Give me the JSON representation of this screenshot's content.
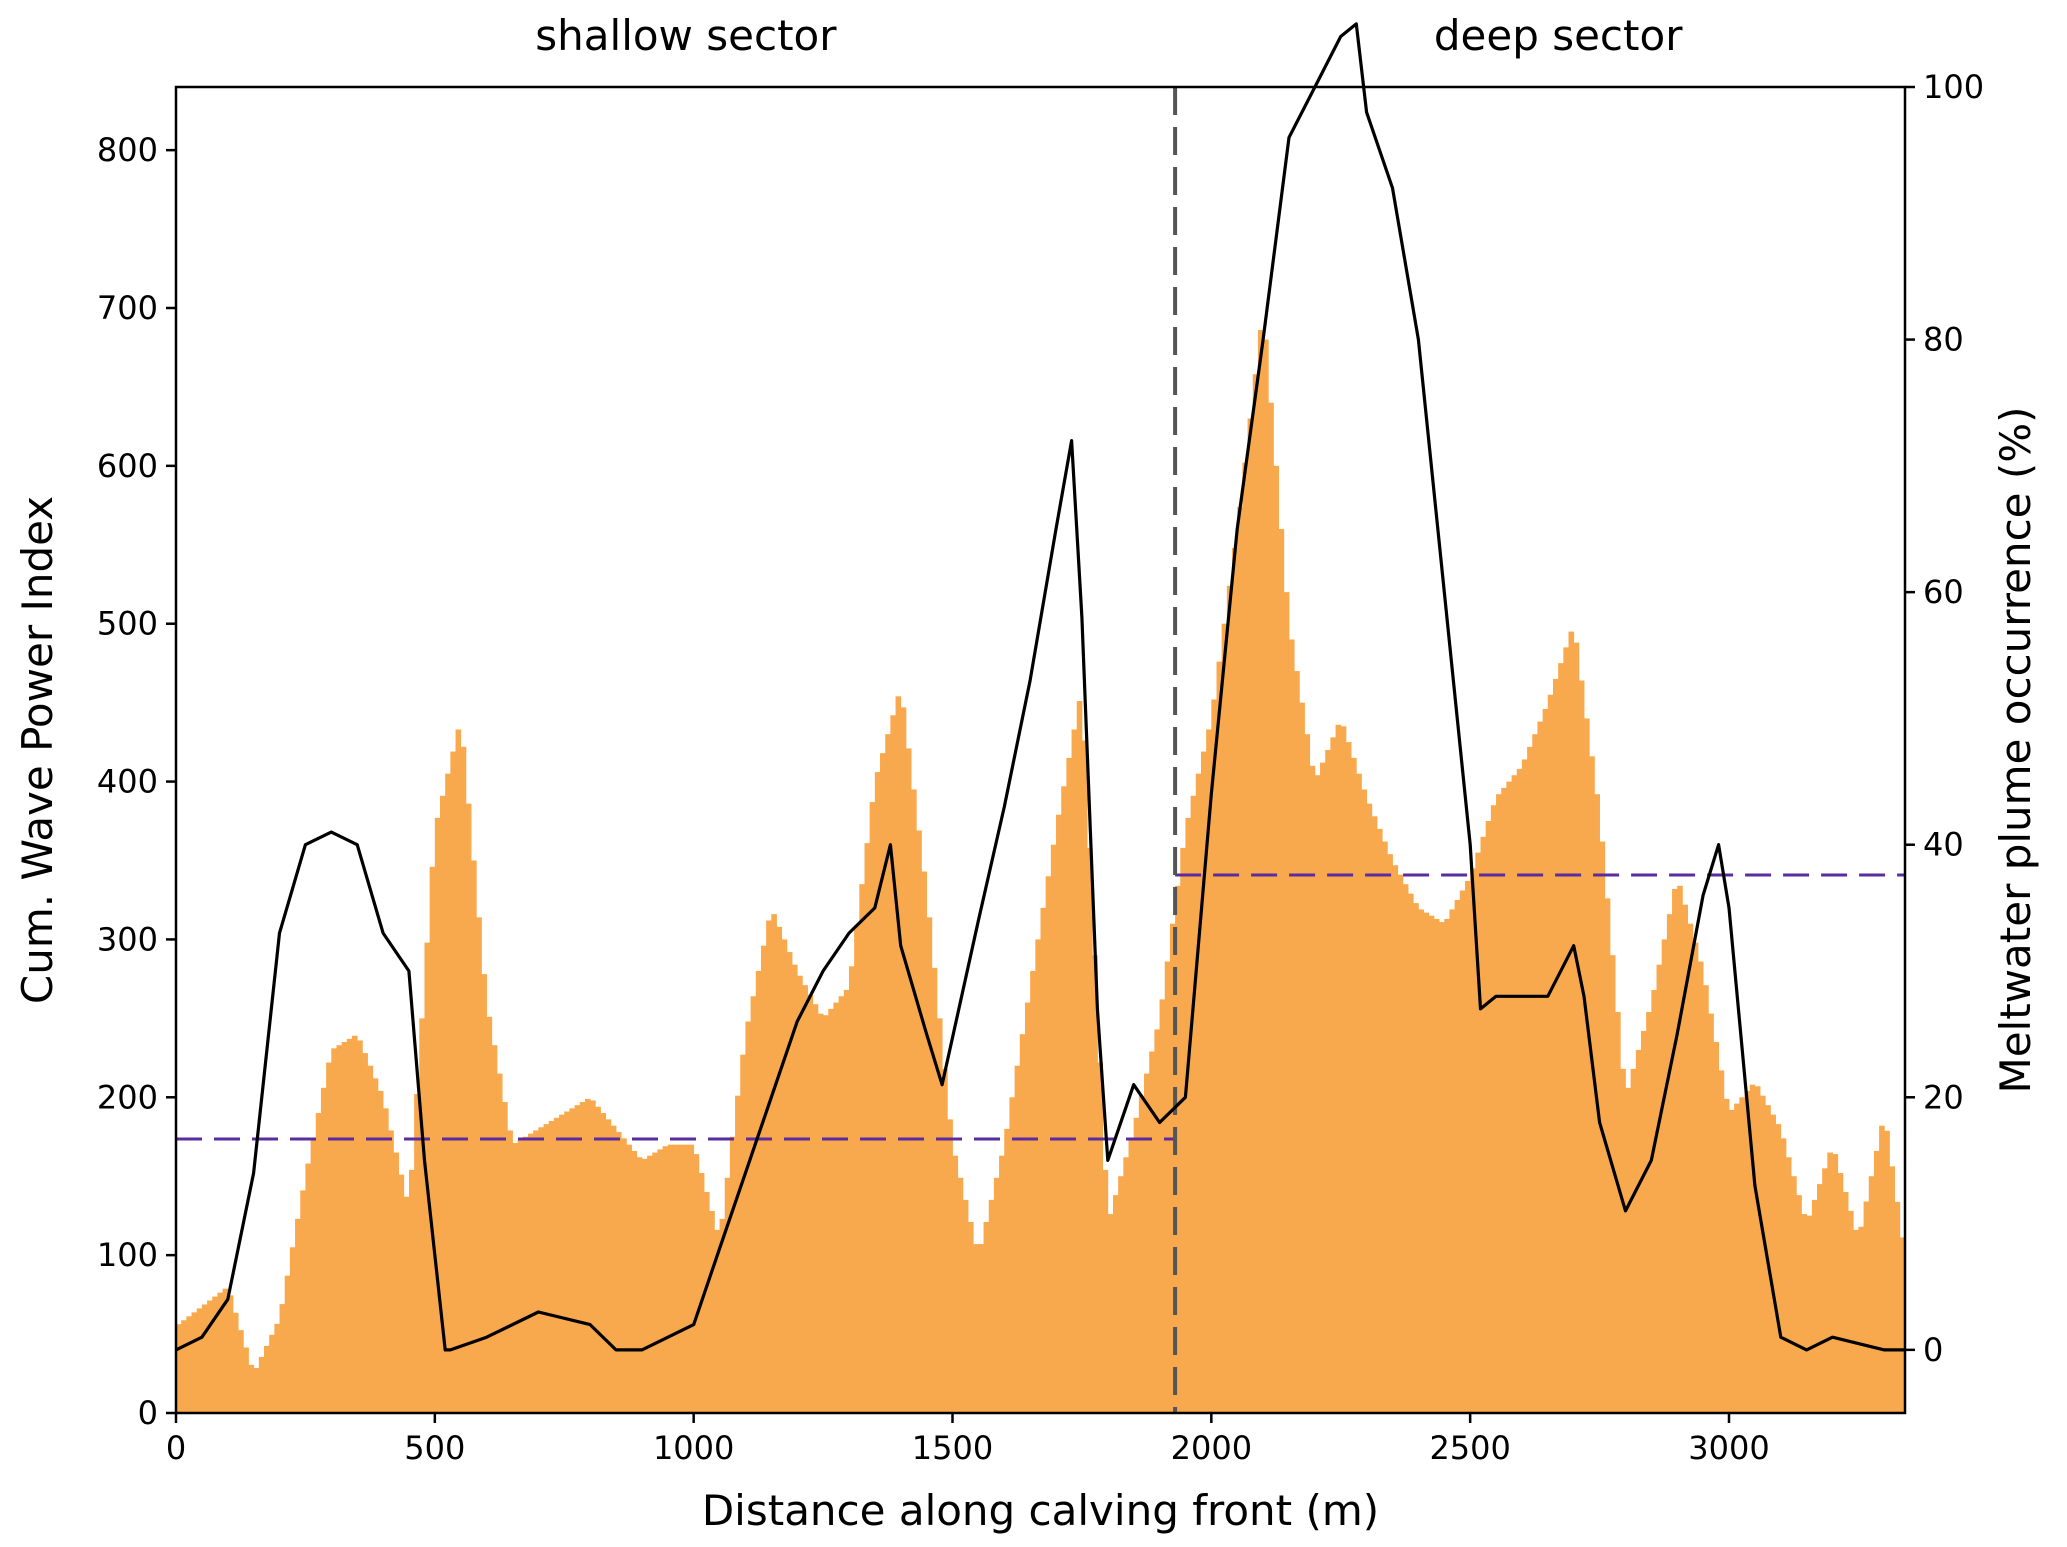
{
  "chart_data": {
    "type": "bar",
    "xlabel": "Distance along calving front (m)",
    "ylabel": "Cum. Wave Power Index",
    "ylabel_right": "Meltwater plume occurrence (%)",
    "xlim": [
      0,
      3340
    ],
    "ylim": [
      0,
      840
    ],
    "ylim_right": [
      -5,
      100
    ],
    "xticks": [
      0,
      500,
      1000,
      1500,
      2000,
      2500,
      3000
    ],
    "yticks": [
      0,
      100,
      200,
      300,
      400,
      500,
      600,
      700,
      800
    ],
    "yticks_right": [
      0,
      20,
      40,
      60,
      80,
      100
    ],
    "grid": false,
    "annotations": [
      {
        "text": "shallow sector",
        "x": 985
      },
      {
        "text": "deep sector",
        "x": 2670
      }
    ],
    "sector_boundary_x": 1930,
    "colors": {
      "bars": "#f8a84d",
      "line": "#000000",
      "mean": "#5a2ca0",
      "boundary": "#555555"
    },
    "bars_x": [
      0,
      100,
      150,
      200,
      250,
      300,
      350,
      400,
      450,
      500,
      550,
      600,
      650,
      700,
      750,
      800,
      850,
      900,
      950,
      1000,
      1050,
      1100,
      1150,
      1200,
      1250,
      1300,
      1350,
      1400,
      1450,
      1500,
      1550,
      1600,
      1650,
      1700,
      1750,
      1800,
      1850,
      1900,
      1950,
      2000,
      2050,
      2100,
      2150,
      2200,
      2250,
      2300,
      2350,
      2400,
      2450,
      2500,
      2550,
      2600,
      2650,
      2700,
      2750,
      2800,
      2850,
      2900,
      2950,
      3000,
      3050,
      3100,
      3150,
      3200,
      3250,
      3300,
      3340
    ],
    "bars_y": [
      55,
      80,
      25,
      60,
      150,
      230,
      240,
      200,
      130,
      370,
      440,
      260,
      170,
      180,
      190,
      200,
      180,
      160,
      170,
      170,
      110,
      240,
      320,
      280,
      250,
      270,
      400,
      460,
      330,
      170,
      100,
      170,
      270,
      370,
      460,
      120,
      180,
      250,
      370,
      440,
      560,
      700,
      500,
      400,
      440,
      390,
      350,
      320,
      310,
      340,
      390,
      410,
      450,
      500,
      380,
      200,
      260,
      340,
      280,
      190,
      210,
      180,
      120,
      170,
      110,
      190,
      100
    ],
    "line_x": [
      0,
      50,
      100,
      150,
      200,
      250,
      300,
      350,
      400,
      450,
      480,
      520,
      530,
      600,
      700,
      800,
      850,
      900,
      1000,
      1050,
      1100,
      1150,
      1200,
      1250,
      1300,
      1350,
      1380,
      1400,
      1450,
      1480,
      1550,
      1600,
      1650,
      1700,
      1730,
      1750,
      1780,
      1800,
      1850,
      1900,
      1950,
      2000,
      2050,
      2100,
      2150,
      2200,
      2250,
      2280,
      2300,
      2350,
      2400,
      2450,
      2500,
      2520,
      2550,
      2600,
      2650,
      2700,
      2720,
      2750,
      2800,
      2850,
      2900,
      2950,
      2980,
      3000,
      3050,
      3100,
      3150,
      3200,
      3300,
      3340
    ],
    "line_y": [
      0,
      1,
      4,
      14,
      33,
      40,
      41,
      40,
      33,
      30,
      15,
      0,
      0,
      1,
      3,
      2,
      0,
      0,
      2,
      8,
      14,
      20,
      26,
      30,
      33,
      35,
      40,
      32,
      25,
      21,
      34,
      43,
      53,
      65,
      72,
      58,
      27,
      15,
      21,
      18,
      20,
      44,
      65,
      80,
      96,
      100,
      104,
      105,
      98,
      92,
      80,
      60,
      40,
      27,
      28,
      28,
      28,
      32,
      28,
      18,
      11,
      15,
      25,
      36,
      40,
      35,
      13,
      1,
      0,
      1,
      0,
      0
    ],
    "mean_shallow": 16.7,
    "mean_deep": 37.6
  }
}
